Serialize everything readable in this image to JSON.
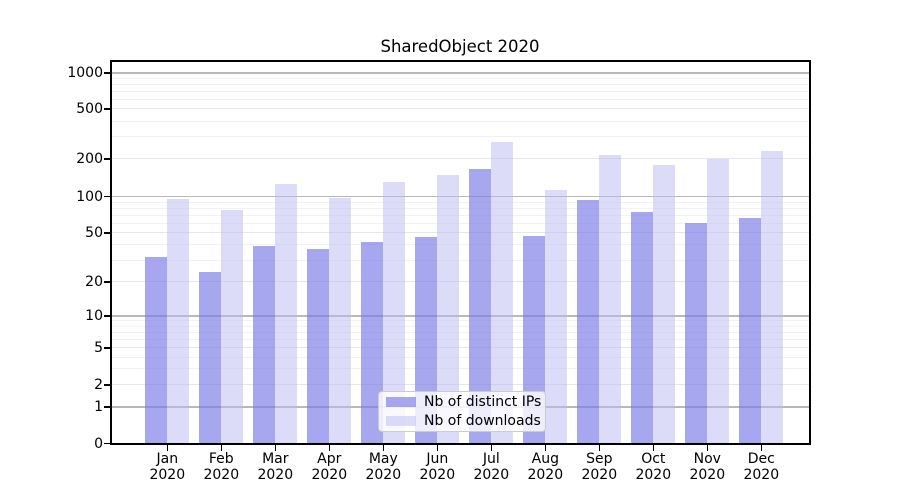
{
  "chart_data": {
    "type": "bar",
    "title": "SharedObject 2020",
    "x_year": "2020",
    "months": [
      "Jan",
      "Feb",
      "Mar",
      "Apr",
      "May",
      "Jun",
      "Jul",
      "Aug",
      "Sep",
      "Oct",
      "Nov",
      "Dec"
    ],
    "categories": [
      "Jan 2020",
      "Feb 2020",
      "Mar 2020",
      "Apr 2020",
      "May 2020",
      "Jun 2020",
      "Jul 2020",
      "Aug 2020",
      "Sep 2020",
      "Oct 2020",
      "Nov 2020",
      "Dec 2020"
    ],
    "series": [
      {
        "name": "Nb of distinct IPs",
        "color": "rgba(122,122,232,0.66)",
        "values": [
          32,
          24,
          39,
          37,
          42,
          46,
          165,
          47,
          94,
          75,
          61,
          67
        ]
      },
      {
        "name": "Nb of downloads",
        "color": "rgba(186,186,242,0.5)",
        "values": [
          95,
          78,
          125,
          97,
          130,
          148,
          275,
          113,
          215,
          180,
          200,
          230
        ]
      }
    ],
    "y_axis": {
      "scale": "symlog",
      "ticks": [
        0,
        1,
        2,
        5,
        10,
        20,
        50,
        100,
        200,
        500,
        1000
      ],
      "minor_ticks": [
        3,
        4,
        6,
        7,
        8,
        9,
        30,
        40,
        60,
        70,
        80,
        90,
        300,
        400,
        600,
        700,
        800,
        900
      ],
      "ylim": [
        0,
        1000
      ]
    },
    "grid": "on",
    "legend": {
      "position": "lower center"
    }
  }
}
